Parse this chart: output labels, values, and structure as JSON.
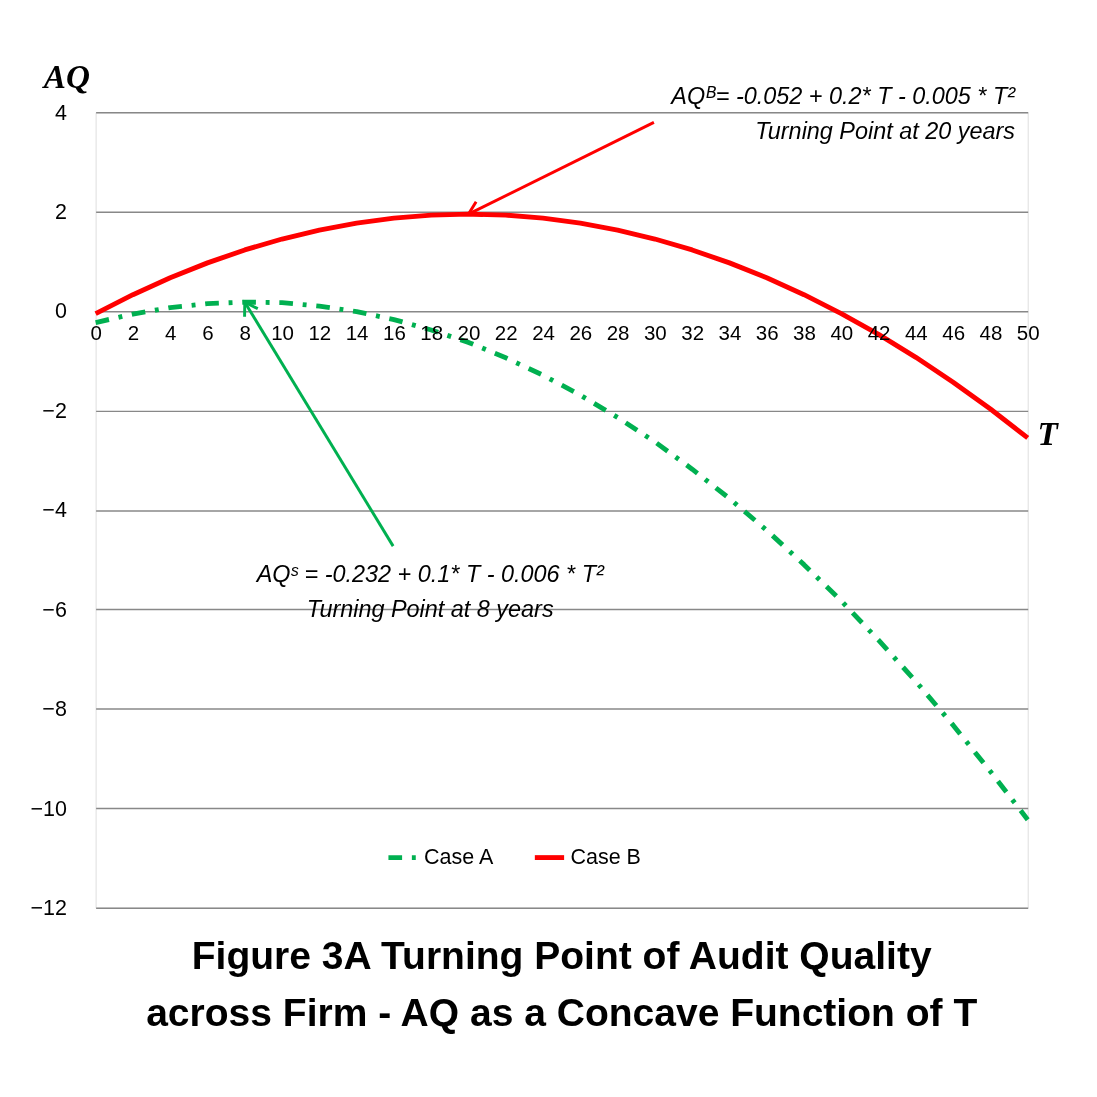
{
  "chart_data": {
    "type": "line",
    "title": "Figure 3A Turning Point of Audit Quality across Firm - AQ as a Concave Function of T",
    "xlabel": "T",
    "ylabel": "AQ",
    "x": [
      0,
      2,
      4,
      6,
      8,
      10,
      12,
      14,
      16,
      18,
      20,
      22,
      24,
      26,
      28,
      30,
      32,
      34,
      36,
      38,
      40,
      42,
      44,
      46,
      48,
      50
    ],
    "series": [
      {
        "name": "Case A",
        "color": "#00b050",
        "line_style": "dashed",
        "values": [
          -0.23,
          -0.06,
          0.07,
          0.15,
          0.18,
          0.17,
          0.1,
          -0.01,
          -0.17,
          -0.38,
          -0.63,
          -0.94,
          -1.29,
          -1.69,
          -2.14,
          -2.63,
          -3.18,
          -3.77,
          -4.41,
          -5.1,
          -5.83,
          -6.62,
          -7.45,
          -8.33,
          -9.26,
          -10.23
        ]
      },
      {
        "name": "Case B",
        "color": "#ff0000",
        "line_style": "solid",
        "values": [
          -0.05,
          0.33,
          0.67,
          0.97,
          1.23,
          1.45,
          1.63,
          1.77,
          1.87,
          1.93,
          1.95,
          1.93,
          1.87,
          1.77,
          1.63,
          1.45,
          1.23,
          0.97,
          0.67,
          0.33,
          -0.05,
          -0.47,
          -0.93,
          -1.43,
          -1.97,
          -2.55
        ]
      }
    ],
    "annotations": [
      {
        "text": "AQᴮ= -0.052 + 0.2* T -  0.005 * T²\nTurning Point at 20 years",
        "x": 20,
        "y": 1.95
      },
      {
        "text": "AQˢ = -0.232 + 0.1* T -  0.006 * T²\nTurning Point at 8 years",
        "x": 8,
        "y": 0.18
      }
    ],
    "xlim": [
      0,
      50
    ],
    "xticks": [
      0,
      2,
      4,
      6,
      8,
      10,
      12,
      14,
      16,
      18,
      20,
      22,
      24,
      26,
      28,
      30,
      32,
      34,
      36,
      38,
      40,
      42,
      44,
      46,
      48,
      50
    ],
    "ylim": [
      -12,
      4
    ],
    "yticks": [
      -12,
      -10,
      -8,
      -6,
      -4,
      -2,
      0,
      2,
      4
    ],
    "grid": "y",
    "legend": "bottom"
  }
}
